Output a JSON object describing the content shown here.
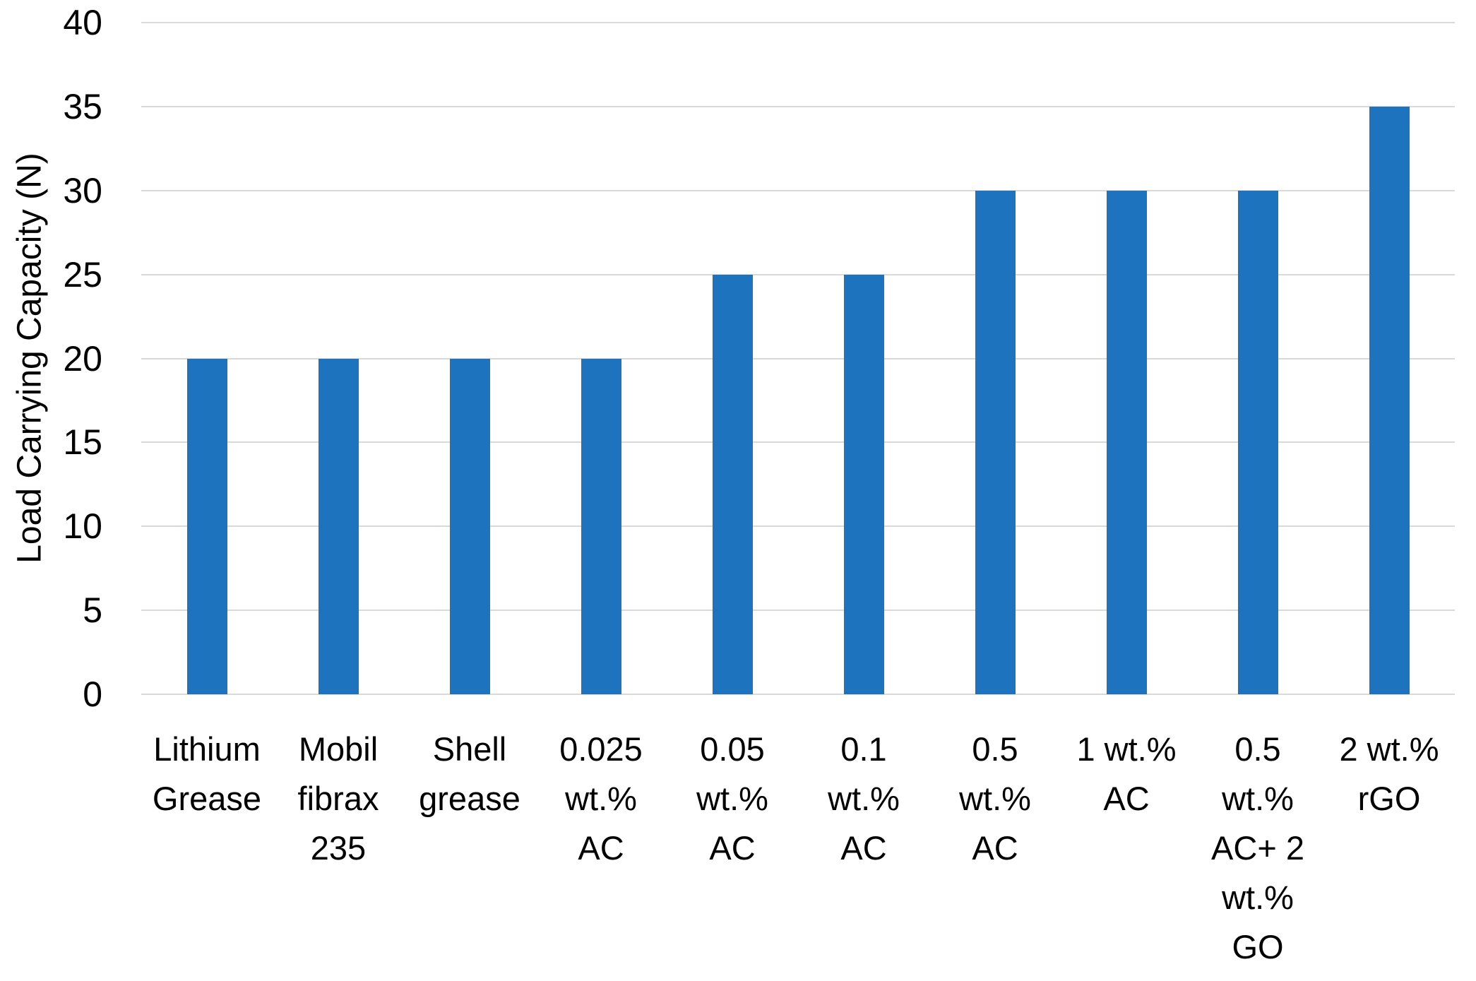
{
  "chart_data": {
    "type": "bar",
    "title": "",
    "xlabel": "",
    "ylabel": "Load Carrying Capacity (N)",
    "categories": [
      "Lithium Grease",
      "Mobil fibrax 235",
      "Shell grease",
      "0.025 wt.% AC",
      "0.05 wt.% AC",
      "0.1 wt.% AC",
      "0.5 wt.% AC",
      "1 wt.% AC",
      "0.5 wt.% AC+ 2 wt.% GO",
      "2 wt.% rGO"
    ],
    "category_tick_lines": [
      [
        "Lithium",
        "Grease"
      ],
      [
        "Mobil",
        "fibrax",
        "235"
      ],
      [
        "Shell",
        "grease"
      ],
      [
        "0.025",
        "wt.%",
        "AC"
      ],
      [
        "0.05",
        "wt.%",
        "AC"
      ],
      [
        "0.1",
        "wt.%",
        "AC"
      ],
      [
        "0.5",
        "wt.%",
        "AC"
      ],
      [
        "1 wt.%",
        "AC"
      ],
      [
        "0.5",
        "wt.%",
        "AC+ 2",
        "wt.%",
        "GO"
      ],
      [
        "2 wt.%",
        "rGO"
      ]
    ],
    "values": [
      20,
      20,
      20,
      20,
      25,
      25,
      30,
      30,
      30,
      35
    ],
    "ylim": [
      0,
      40
    ],
    "yticks": [
      0,
      5,
      10,
      15,
      20,
      25,
      30,
      35,
      40
    ],
    "grid": true,
    "legend": "none",
    "bar_color": "#1E73BE",
    "gridline_color": "#D9D9D9",
    "text_color": "#000000",
    "background_color": "#FFFFFF"
  }
}
